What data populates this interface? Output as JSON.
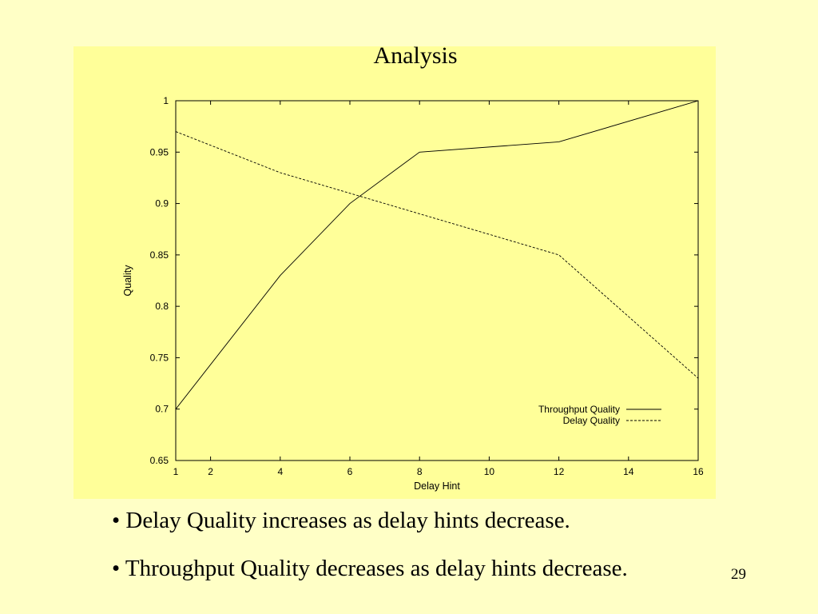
{
  "slide": {
    "title": "Analysis",
    "bullets": [
      "• Delay Quality increases as delay hints decrease.",
      "• Throughput Quality decreases as delay hints decrease."
    ],
    "page_number": "29"
  },
  "colors": {
    "slide_background": "#FFFFC6",
    "plot_background": "#FFFF99",
    "lines": "#000000"
  },
  "chart_data": {
    "type": "line",
    "title": "",
    "xlabel": "Delay Hint",
    "ylabel": "Quality",
    "xlim": [
      1,
      16
    ],
    "ylim": [
      0.65,
      1
    ],
    "x_ticks": [
      1,
      2,
      4,
      6,
      8,
      10,
      12,
      14,
      16
    ],
    "y_ticks": [
      0.65,
      0.7,
      0.75,
      0.8,
      0.85,
      0.9,
      0.95,
      1
    ],
    "y_tick_labels": [
      "0.65",
      "0.7",
      "0.75",
      "0.8",
      "0.85",
      "0.9",
      "0.95",
      "1"
    ],
    "grid": false,
    "legend_position": "bottom-right",
    "series": [
      {
        "name": "Throughput Quality",
        "style": "solid",
        "x": [
          1,
          4,
          6,
          8,
          12,
          16
        ],
        "y": [
          0.7,
          0.83,
          0.9,
          0.95,
          0.96,
          1.0
        ]
      },
      {
        "name": "Delay Quality",
        "style": "dashed",
        "x": [
          1,
          4,
          8,
          12,
          16
        ],
        "y": [
          0.97,
          0.93,
          0.89,
          0.85,
          0.73
        ]
      }
    ]
  }
}
